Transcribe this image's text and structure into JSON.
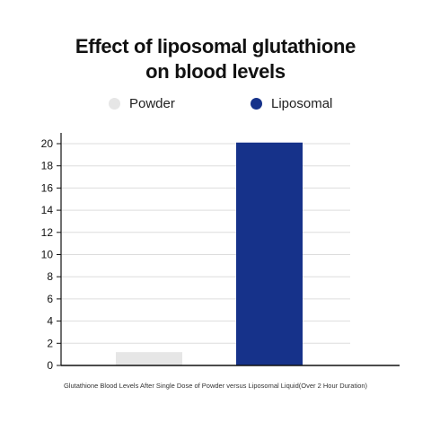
{
  "title": {
    "line1": "Effect of liposomal glutathione",
    "line2": "on blood levels"
  },
  "legend": {
    "items": [
      {
        "label": "Powder",
        "color": "#e6e6e6"
      },
      {
        "label": "Liposomal",
        "color": "#16328a"
      }
    ]
  },
  "caption": "Glutathione Blood Levels After Single Dose of Powder versus Liposomal Liquid(Over 2 Hour Duration)",
  "chart_data": {
    "type": "bar",
    "categories": [
      "Powder",
      "Liposomal"
    ],
    "values": [
      1.2,
      20.1
    ],
    "colors": [
      "#e6e6e6",
      "#16328a"
    ],
    "title": "Effect of liposomal glutathione on blood levels",
    "xlabel": "",
    "ylabel": "",
    "ylim": [
      0,
      20
    ],
    "yticks": [
      0,
      2,
      4,
      6,
      8,
      10,
      12,
      14,
      16,
      18,
      20
    ],
    "grid": true,
    "legend_position": "top"
  }
}
